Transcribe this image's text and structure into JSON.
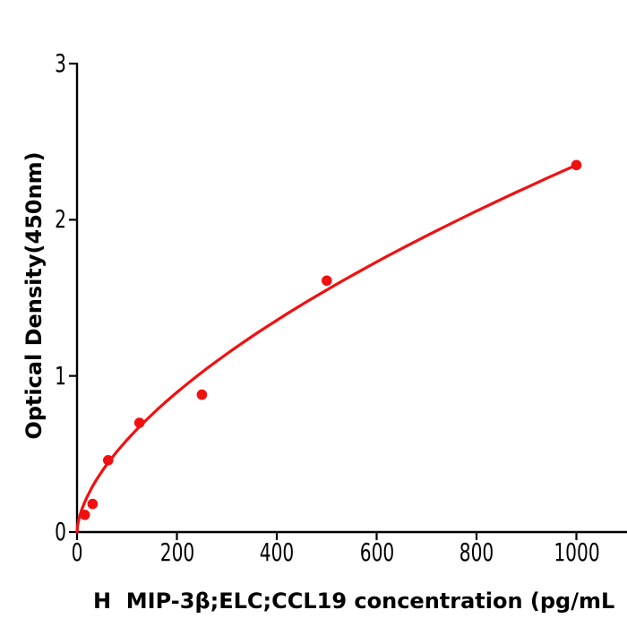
{
  "figure": {
    "background": "#ffffff"
  },
  "chart_data": {
    "type": "scatter",
    "title": "",
    "xlabel": "H  MIP-3β;ELC;CCL19 concentration (pg/mL",
    "ylabel": "Optical Density(450nm)",
    "x_ticks": [
      0,
      200,
      400,
      600,
      800,
      1000
    ],
    "x_tick_labels": [
      "0",
      "200",
      "400",
      "600",
      "800",
      "1000"
    ],
    "y_ticks": [
      0,
      1,
      2,
      3
    ],
    "y_tick_labels": [
      "0",
      "1",
      "2",
      "3"
    ],
    "xlim": [
      0,
      1100
    ],
    "ylim": [
      0,
      3
    ],
    "grid": false,
    "legend": null,
    "points": [
      {
        "x": 15.6,
        "y": 0.11
      },
      {
        "x": 31.2,
        "y": 0.18
      },
      {
        "x": 62.5,
        "y": 0.46
      },
      {
        "x": 125,
        "y": 0.7
      },
      {
        "x": 250,
        "y": 0.88
      },
      {
        "x": 500,
        "y": 1.61
      },
      {
        "x": 1000,
        "y": 2.35
      }
    ],
    "fit_curve": {
      "model": "power",
      "formula": "y = 0.03725 * x^0.6",
      "a": 0.03725,
      "b": 0.6,
      "x_start": 0,
      "x_end": 1000
    },
    "series_color": "#f11010",
    "axis_color": "#000000"
  }
}
